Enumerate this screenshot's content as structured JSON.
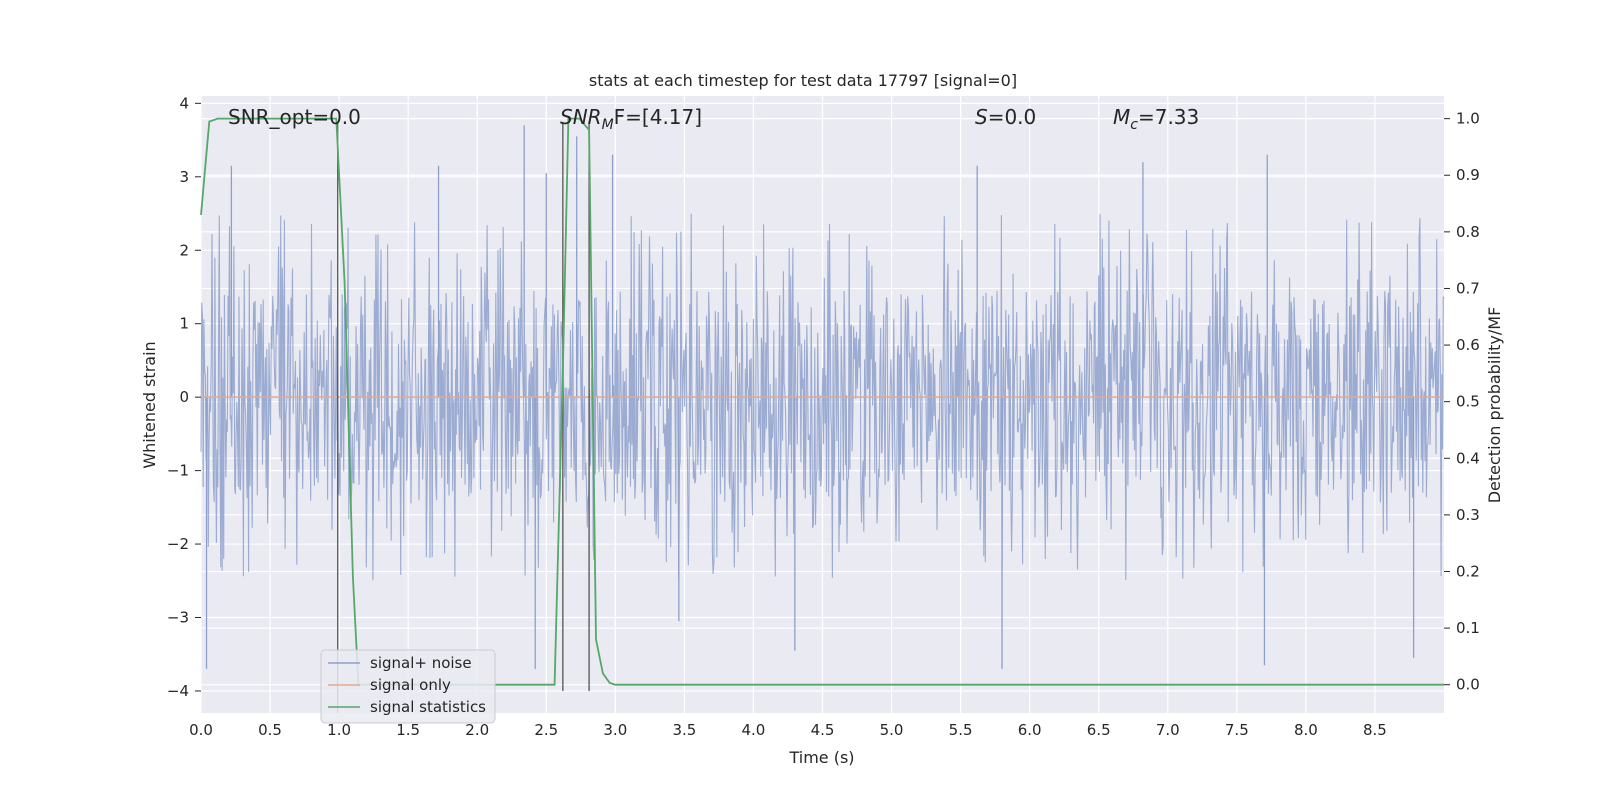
{
  "chart_data": {
    "type": "line",
    "title": "stats at each timestep for test data 17797 [signal=0]",
    "xlabel": "Time (s)",
    "ylabel": "Whitened strain",
    "y2label": "Detection probability/MF",
    "xlim": [
      0,
      9.0
    ],
    "ylim": [
      -4.3,
      4.1
    ],
    "y2lim": [
      -0.05,
      1.04
    ],
    "xticks": [
      0.0,
      0.5,
      1.0,
      1.5,
      2.0,
      2.5,
      3.0,
      3.5,
      4.0,
      4.5,
      5.0,
      5.5,
      6.0,
      6.5,
      7.0,
      7.5,
      8.0,
      8.5
    ],
    "xtick_labels": [
      "0.0",
      "0.5",
      "1.0",
      "1.5",
      "2.0",
      "2.5",
      "3.0",
      "3.5",
      "4.0",
      "4.5",
      "5.0",
      "5.5",
      "6.0",
      "6.5",
      "7.0",
      "7.5",
      "8.0",
      "8.5"
    ],
    "yticks": [
      -4,
      -3,
      -2,
      -1,
      0,
      1,
      2,
      3,
      4
    ],
    "ytick_labels": [
      "−4",
      "−3",
      "−2",
      "−1",
      "0",
      "1",
      "2",
      "3",
      "4"
    ],
    "y2ticks": [
      0.0,
      0.1,
      0.2,
      0.3,
      0.4,
      0.5,
      0.6,
      0.7,
      0.8,
      0.9,
      1.0
    ],
    "y2tick_labels": [
      "0.0",
      "0.1",
      "0.2",
      "0.3",
      "0.4",
      "0.5",
      "0.6",
      "0.7",
      "0.8",
      "0.9",
      "1.0"
    ],
    "grid": true,
    "legend_position": "lower-left",
    "series": [
      {
        "name": "signal+ noise",
        "color": "#8da0cb",
        "description_of_values": "whitened noise, approx. uniform between -1.7 and 1.7 with spikes up to about 3.7 and down to about -3.7 over 0 to 9 s"
      },
      {
        "name": "signal only",
        "color": "#e5a88c",
        "x": [
          0,
          9.0
        ],
        "y": [
          0,
          0
        ]
      },
      {
        "name": "signal statistics",
        "color": "#55a868",
        "axis": "right",
        "x": [
          0.0,
          0.06,
          0.12,
          0.5,
          0.9,
          0.98,
          1.04,
          1.1,
          1.14,
          1.2,
          2.2,
          2.56,
          2.62,
          2.66,
          2.74,
          2.81,
          2.86,
          2.91,
          2.96,
          3.0,
          9.0
        ],
        "y": [
          0.83,
          0.995,
          1.0,
          1.0,
          1.0,
          1.0,
          0.71,
          0.19,
          0.0,
          0.0,
          0.0,
          0.0,
          0.56,
          1.0,
          1.0,
          0.98,
          0.08,
          0.02,
          0.003,
          0.0,
          0.0
        ]
      }
    ],
    "spike_peaks": [
      {
        "x": 0.04,
        "y": -3.7
      },
      {
        "x": 0.22,
        "y": 3.15
      },
      {
        "x": 1.72,
        "y": 3.15
      },
      {
        "x": 2.34,
        "y": 3.7
      },
      {
        "x": 2.42,
        "y": -3.7
      },
      {
        "x": 2.5,
        "y": 3.05
      },
      {
        "x": 2.72,
        "y": 3.55
      },
      {
        "x": 2.98,
        "y": 3.3
      },
      {
        "x": 3.46,
        "y": -3.05
      },
      {
        "x": 4.3,
        "y": -3.45
      },
      {
        "x": 5.62,
        "y": 3.15
      },
      {
        "x": 5.8,
        "y": -3.7
      },
      {
        "x": 6.82,
        "y": 3.2
      },
      {
        "x": 7.72,
        "y": 3.3
      },
      {
        "x": 7.7,
        "y": -3.65
      },
      {
        "x": 8.78,
        "y": -3.55
      }
    ],
    "vlines": [
      {
        "x": 0.99,
        "top": 3.75,
        "bottom": -4.3
      },
      {
        "x": 2.62,
        "top": 3.75,
        "bottom": -4.0
      },
      {
        "x": 2.81,
        "top": 3.75,
        "bottom": -4.0
      }
    ],
    "annotations": [
      {
        "id": "snr_opt",
        "text": "SNR_opt=0.0"
      },
      {
        "id": "snr_mf",
        "text_main": "SNR",
        "text_sub": "M",
        "text_rest": "F=[4.17]"
      },
      {
        "id": "s",
        "text_main": "S",
        "text_rest": "=0.0"
      },
      {
        "id": "mc",
        "text_main": "M",
        "text_sub": "c",
        "text_rest": "=7.33"
      }
    ],
    "legend": [
      "signal+ noise",
      "signal only",
      "signal statistics"
    ]
  }
}
